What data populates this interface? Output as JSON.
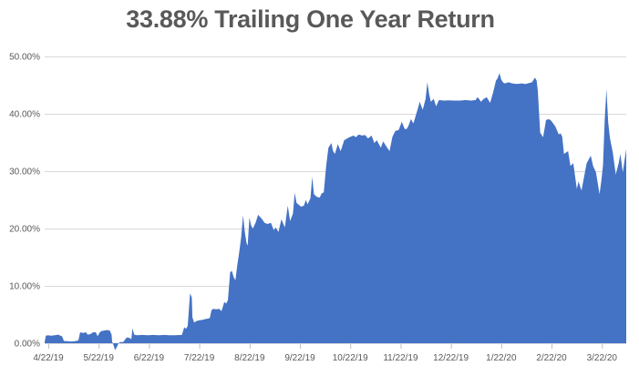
{
  "page": {
    "title": "33.88% Trailing One Year Return"
  },
  "colors": {
    "area_fill": "#4472C4",
    "title_text": "#595959",
    "axis_text": "#595959",
    "gridline": "#D9D9D9",
    "axis_line": "#D9D9D9",
    "tick_mark": "#BFBFBF",
    "background": "#FFFFFF"
  },
  "chart_data": {
    "type": "area",
    "title": "33.88% Trailing One Year Return",
    "final_value_pct": 33.88,
    "legend": "none",
    "grid": "horizontal",
    "x_unit": "axis_fraction",
    "y_unit": "percent",
    "ylim": [
      -2,
      50
    ],
    "y_ticks": [
      {
        "label": "0.00%",
        "value": 0
      },
      {
        "label": "10.00%",
        "value": 10
      },
      {
        "label": "20.00%",
        "value": 20
      },
      {
        "label": "30.00%",
        "value": 30
      },
      {
        "label": "40.00%",
        "value": 40
      },
      {
        "label": "50.00%",
        "value": 50
      }
    ],
    "x_ticks": [
      {
        "label": "4/22/19",
        "pos": 0.0063
      },
      {
        "label": "5/22/19",
        "pos": 0.0928
      },
      {
        "label": "6/22/19",
        "pos": 0.1793
      },
      {
        "label": "7/22/19",
        "pos": 0.2658
      },
      {
        "label": "8/22/19",
        "pos": 0.3524
      },
      {
        "label": "9/22/19",
        "pos": 0.4389
      },
      {
        "label": "10/22/19",
        "pos": 0.5254
      },
      {
        "label": "11/22/19",
        "pos": 0.612
      },
      {
        "label": "12/22/19",
        "pos": 0.6985
      },
      {
        "label": "1/22/20",
        "pos": 0.785
      },
      {
        "label": "2/22/20",
        "pos": 0.8715
      },
      {
        "label": "3/22/20",
        "pos": 0.9581
      }
    ],
    "series": [
      {
        "name": "Trailing One Year Return (%)",
        "points": [
          [
            0.0,
            0.2
          ],
          [
            0.002,
            1.3
          ],
          [
            0.006,
            1.4
          ],
          [
            0.011,
            1.3
          ],
          [
            0.017,
            1.4
          ],
          [
            0.024,
            1.5
          ],
          [
            0.027,
            1.3
          ],
          [
            0.03,
            1.2
          ],
          [
            0.033,
            0.4
          ],
          [
            0.039,
            0.35
          ],
          [
            0.046,
            0.3
          ],
          [
            0.052,
            0.35
          ],
          [
            0.058,
            0.5
          ],
          [
            0.061,
            1.9
          ],
          [
            0.066,
            1.8
          ],
          [
            0.071,
            1.9
          ],
          [
            0.074,
            1.5
          ],
          [
            0.079,
            1.6
          ],
          [
            0.083,
            1.9
          ],
          [
            0.088,
            1.9
          ],
          [
            0.091,
            1.2
          ],
          [
            0.094,
            1.8
          ],
          [
            0.097,
            2.1
          ],
          [
            0.102,
            2.2
          ],
          [
            0.107,
            2.3
          ],
          [
            0.112,
            2.2
          ],
          [
            0.115,
            1.5
          ],
          [
            0.116,
            0.3
          ],
          [
            0.119,
            -0.5
          ],
          [
            0.121,
            -1.2
          ],
          [
            0.124,
            -0.7
          ],
          [
            0.127,
            0.0
          ],
          [
            0.13,
            0.2
          ],
          [
            0.135,
            0.2
          ],
          [
            0.138,
            0.6
          ],
          [
            0.141,
            1.0
          ],
          [
            0.144,
            1.0
          ],
          [
            0.148,
            0.8
          ],
          [
            0.149,
            0.7
          ],
          [
            0.151,
            2.6
          ],
          [
            0.154,
            1.5
          ],
          [
            0.159,
            1.4
          ],
          [
            0.168,
            1.45
          ],
          [
            0.177,
            1.4
          ],
          [
            0.187,
            1.45
          ],
          [
            0.196,
            1.4
          ],
          [
            0.206,
            1.45
          ],
          [
            0.215,
            1.4
          ],
          [
            0.224,
            1.4
          ],
          [
            0.236,
            1.45
          ],
          [
            0.24,
            2.8
          ],
          [
            0.243,
            2.5
          ],
          [
            0.246,
            3.0
          ],
          [
            0.25,
            8.7
          ],
          [
            0.253,
            8.0
          ],
          [
            0.254,
            4.5
          ],
          [
            0.257,
            3.6
          ],
          [
            0.262,
            3.9
          ],
          [
            0.267,
            4.0
          ],
          [
            0.272,
            4.1
          ],
          [
            0.276,
            4.2
          ],
          [
            0.281,
            4.3
          ],
          [
            0.284,
            4.4
          ],
          [
            0.287,
            5.8
          ],
          [
            0.29,
            6.0
          ],
          [
            0.295,
            5.9
          ],
          [
            0.3,
            6.0
          ],
          [
            0.304,
            5.6
          ],
          [
            0.309,
            7.2
          ],
          [
            0.312,
            6.9
          ],
          [
            0.315,
            7.5
          ],
          [
            0.319,
            12.4
          ],
          [
            0.322,
            12.6
          ],
          [
            0.325,
            11.5
          ],
          [
            0.328,
            11.0
          ],
          [
            0.331,
            13.5
          ],
          [
            0.334,
            15.5
          ],
          [
            0.338,
            18.5
          ],
          [
            0.341,
            22.3
          ],
          [
            0.344,
            19.5
          ],
          [
            0.347,
            17.5
          ],
          [
            0.349,
            17.0
          ],
          [
            0.352,
            21.9
          ],
          [
            0.355,
            20.5
          ],
          [
            0.358,
            20.0
          ],
          [
            0.363,
            21.1
          ],
          [
            0.367,
            22.4
          ],
          [
            0.374,
            21.6
          ],
          [
            0.378,
            21.0
          ],
          [
            0.383,
            20.8
          ],
          [
            0.389,
            21.0
          ],
          [
            0.394,
            19.7
          ],
          [
            0.397,
            20.2
          ],
          [
            0.402,
            19.4
          ],
          [
            0.407,
            21.6
          ],
          [
            0.413,
            20.2
          ],
          [
            0.418,
            24.0
          ],
          [
            0.422,
            21.3
          ],
          [
            0.427,
            22.6
          ],
          [
            0.43,
            26.2
          ],
          [
            0.433,
            24.5
          ],
          [
            0.436,
            24.2
          ],
          [
            0.441,
            23.8
          ],
          [
            0.446,
            24.0
          ],
          [
            0.449,
            25.0
          ],
          [
            0.452,
            24.2
          ],
          [
            0.457,
            25.3
          ],
          [
            0.46,
            29.0
          ],
          [
            0.463,
            26.0
          ],
          [
            0.468,
            25.5
          ],
          [
            0.473,
            25.4
          ],
          [
            0.476,
            26.1
          ],
          [
            0.48,
            26.3
          ],
          [
            0.484,
            30.9
          ],
          [
            0.488,
            34.1
          ],
          [
            0.493,
            34.9
          ],
          [
            0.496,
            33.5
          ],
          [
            0.499,
            33.0
          ],
          [
            0.504,
            34.7
          ],
          [
            0.509,
            33.5
          ],
          [
            0.515,
            35.4
          ],
          [
            0.52,
            35.7
          ],
          [
            0.524,
            35.9
          ],
          [
            0.531,
            36.2
          ],
          [
            0.535,
            35.9
          ],
          [
            0.54,
            36.4
          ],
          [
            0.546,
            36.2
          ],
          [
            0.551,
            36.3
          ],
          [
            0.556,
            35.7
          ],
          [
            0.562,
            36.2
          ],
          [
            0.567,
            34.9
          ],
          [
            0.571,
            35.4
          ],
          [
            0.578,
            34.1
          ],
          [
            0.582,
            35.2
          ],
          [
            0.587,
            34.4
          ],
          [
            0.593,
            33.5
          ],
          [
            0.598,
            36.0
          ],
          [
            0.603,
            37.0
          ],
          [
            0.609,
            37.2
          ],
          [
            0.614,
            38.6
          ],
          [
            0.619,
            37.4
          ],
          [
            0.622,
            37.3
          ],
          [
            0.625,
            37.8
          ],
          [
            0.63,
            39.1
          ],
          [
            0.634,
            38.3
          ],
          [
            0.641,
            40.7
          ],
          [
            0.645,
            42.1
          ],
          [
            0.65,
            40.7
          ],
          [
            0.655,
            42.6
          ],
          [
            0.658,
            45.5
          ],
          [
            0.661,
            43.5
          ],
          [
            0.664,
            42.1
          ],
          [
            0.669,
            42.6
          ],
          [
            0.673,
            41.3
          ],
          [
            0.678,
            42.4
          ],
          [
            0.686,
            42.3
          ],
          [
            0.695,
            42.35
          ],
          [
            0.705,
            42.3
          ],
          [
            0.714,
            42.3
          ],
          [
            0.724,
            42.4
          ],
          [
            0.733,
            42.3
          ],
          [
            0.741,
            42.4
          ],
          [
            0.744,
            42.9
          ],
          [
            0.747,
            42.6
          ],
          [
            0.75,
            42.1
          ],
          [
            0.755,
            42.6
          ],
          [
            0.76,
            42.9
          ],
          [
            0.766,
            41.9
          ],
          [
            0.771,
            43.7
          ],
          [
            0.776,
            45.8
          ],
          [
            0.779,
            46.2
          ],
          [
            0.782,
            47.1
          ],
          [
            0.785,
            46.0
          ],
          [
            0.788,
            45.5
          ],
          [
            0.791,
            45.3
          ],
          [
            0.798,
            45.5
          ],
          [
            0.804,
            45.3
          ],
          [
            0.812,
            45.2
          ],
          [
            0.82,
            45.3
          ],
          [
            0.827,
            45.2
          ],
          [
            0.834,
            45.4
          ],
          [
            0.838,
            45.5
          ],
          [
            0.843,
            46.3
          ],
          [
            0.846,
            45.8
          ],
          [
            0.848,
            44.0
          ],
          [
            0.852,
            36.7
          ],
          [
            0.857,
            35.9
          ],
          [
            0.862,
            38.9
          ],
          [
            0.867,
            39.1
          ],
          [
            0.871,
            38.8
          ],
          [
            0.878,
            37.8
          ],
          [
            0.884,
            36.4
          ],
          [
            0.887,
            36.6
          ],
          [
            0.89,
            36.0
          ],
          [
            0.893,
            33.0
          ],
          [
            0.896,
            33.2
          ],
          [
            0.9,
            33.5
          ],
          [
            0.904,
            30.9
          ],
          [
            0.909,
            31.4
          ],
          [
            0.915,
            26.9
          ],
          [
            0.918,
            28.2
          ],
          [
            0.923,
            26.6
          ],
          [
            0.928,
            29.3
          ],
          [
            0.932,
            31.4
          ],
          [
            0.939,
            32.7
          ],
          [
            0.943,
            30.9
          ],
          [
            0.948,
            29.8
          ],
          [
            0.954,
            26.0
          ],
          [
            0.957,
            28.2
          ],
          [
            0.96,
            31.0
          ],
          [
            0.963,
            39.0
          ],
          [
            0.966,
            44.3
          ],
          [
            0.969,
            38.5
          ],
          [
            0.972,
            35.8
          ],
          [
            0.977,
            33.2
          ],
          [
            0.982,
            29.4
          ],
          [
            0.987,
            31.4
          ],
          [
            0.99,
            33.0
          ],
          [
            0.994,
            29.8
          ],
          [
            1.0,
            33.88
          ]
        ]
      }
    ]
  }
}
